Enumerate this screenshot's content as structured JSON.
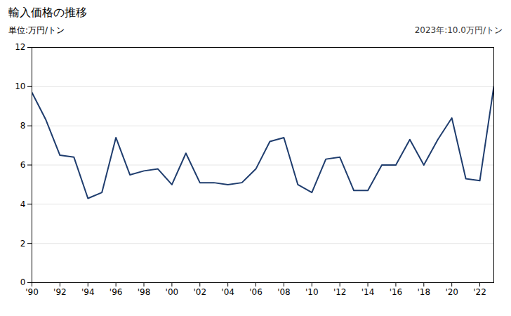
{
  "chart_data": {
    "type": "line",
    "title": "輸入価格の推移",
    "y_label": "単位:万円/トン",
    "annotation": "2023年:10.0万円/トン",
    "x": [
      1990,
      1991,
      1992,
      1993,
      1994,
      1995,
      1996,
      1997,
      1998,
      1999,
      2000,
      2001,
      2002,
      2003,
      2004,
      2005,
      2006,
      2007,
      2008,
      2009,
      2010,
      2011,
      2012,
      2013,
      2014,
      2015,
      2016,
      2017,
      2018,
      2019,
      2020,
      2021,
      2022,
      2023
    ],
    "values": [
      9.7,
      8.3,
      6.5,
      6.4,
      4.3,
      4.6,
      7.4,
      5.5,
      5.7,
      5.8,
      5.0,
      6.6,
      5.1,
      5.1,
      5.0,
      5.1,
      5.8,
      7.2,
      7.4,
      5.0,
      4.6,
      6.3,
      6.4,
      4.7,
      4.7,
      6.0,
      6.0,
      7.3,
      6.0,
      7.3,
      8.4,
      5.3,
      5.2,
      10.0
    ],
    "color": "#1f3d6e",
    "xlim": [
      1990,
      2023
    ],
    "xticks": [
      {
        "value": 1990,
        "label": "'90"
      },
      {
        "value": 1992,
        "label": "'92"
      },
      {
        "value": 1994,
        "label": "'94"
      },
      {
        "value": 1996,
        "label": "'96"
      },
      {
        "value": 1998,
        "label": "'98"
      },
      {
        "value": 2000,
        "label": "'00"
      },
      {
        "value": 2002,
        "label": "'02"
      },
      {
        "value": 2004,
        "label": "'04"
      },
      {
        "value": 2006,
        "label": "'06"
      },
      {
        "value": 2008,
        "label": "'08"
      },
      {
        "value": 2010,
        "label": "'10"
      },
      {
        "value": 2012,
        "label": "'12"
      },
      {
        "value": 2014,
        "label": "'14"
      },
      {
        "value": 2016,
        "label": "'16"
      },
      {
        "value": 2018,
        "label": "'18"
      },
      {
        "value": 2020,
        "label": "'20"
      },
      {
        "value": 2022,
        "label": "'22"
      }
    ],
    "ylim": [
      0,
      12
    ],
    "yticks": [
      0,
      2,
      4,
      6,
      8,
      10,
      12
    ],
    "grid": true
  }
}
